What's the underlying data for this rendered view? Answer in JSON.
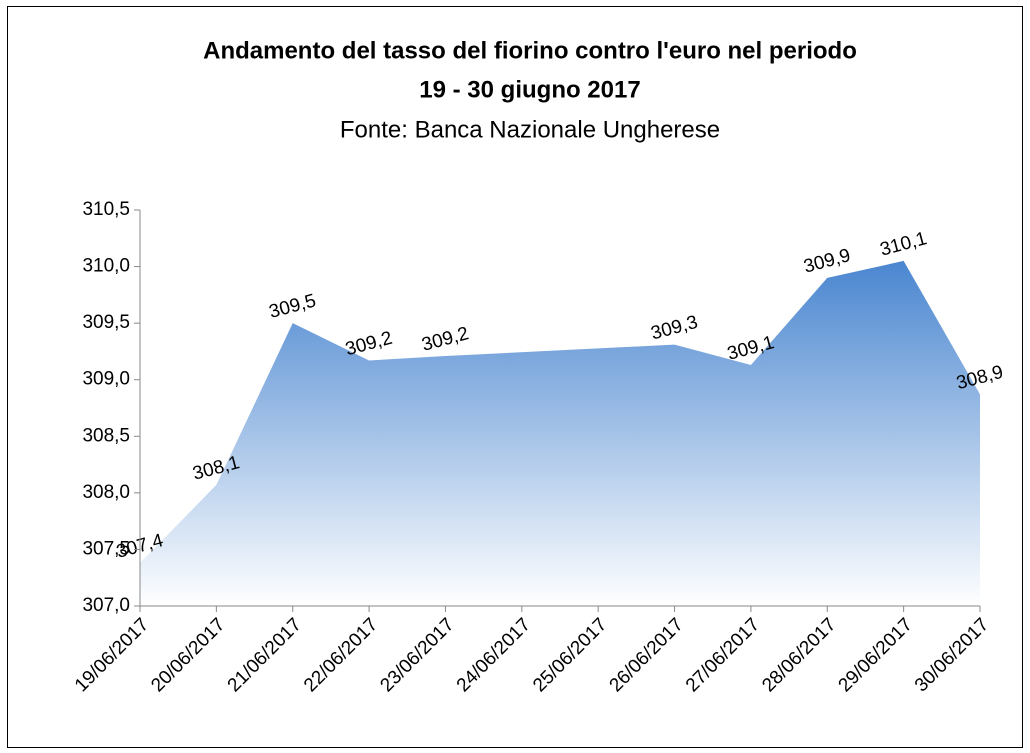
{
  "chart_data": {
    "type": "area",
    "title": "Andamento del tasso del fiorino contro l'euro nel periodo",
    "title_line2": "19 - 30 giugno 2017",
    "subtitle": "Fonte: Banca Nazionale Ungherese",
    "x": [
      "19/06/2017",
      "20/06/2017",
      "21/06/2017",
      "22/06/2017",
      "23/06/2017",
      "26/06/2017",
      "27/06/2017",
      "28/06/2017",
      "29/06/2017",
      "30/06/2017"
    ],
    "values": [
      307.38,
      308.07,
      309.5,
      309.17,
      309.21,
      309.31,
      309.13,
      309.9,
      310.05,
      308.87
    ],
    "value_labels": [
      "307,4",
      "308,1",
      "309,5",
      "309,2",
      "309,2",
      "309,3",
      "309,1",
      "309,9",
      "310,1",
      "308,9"
    ],
    "xticks": [
      "19/06/2017",
      "20/06/2017",
      "21/06/2017",
      "22/06/2017",
      "23/06/2017",
      "24/06/2017",
      "25/06/2017",
      "26/06/2017",
      "27/06/2017",
      "28/06/2017",
      "29/06/2017",
      "30/06/2017"
    ],
    "ylim": [
      307,
      310.5
    ],
    "yticks": [
      {
        "value": 307,
        "label": "307,0"
      },
      {
        "value": 307.5,
        "label": "307,5"
      },
      {
        "value": 308,
        "label": "308,0"
      },
      {
        "value": 308.5,
        "label": "308,5"
      },
      {
        "value": 309,
        "label": "309,0"
      },
      {
        "value": 309.5,
        "label": "309,5"
      },
      {
        "value": 310,
        "label": "310,0"
      },
      {
        "value": 310.5,
        "label": "310,5"
      }
    ],
    "color": "#4a86d0"
  }
}
